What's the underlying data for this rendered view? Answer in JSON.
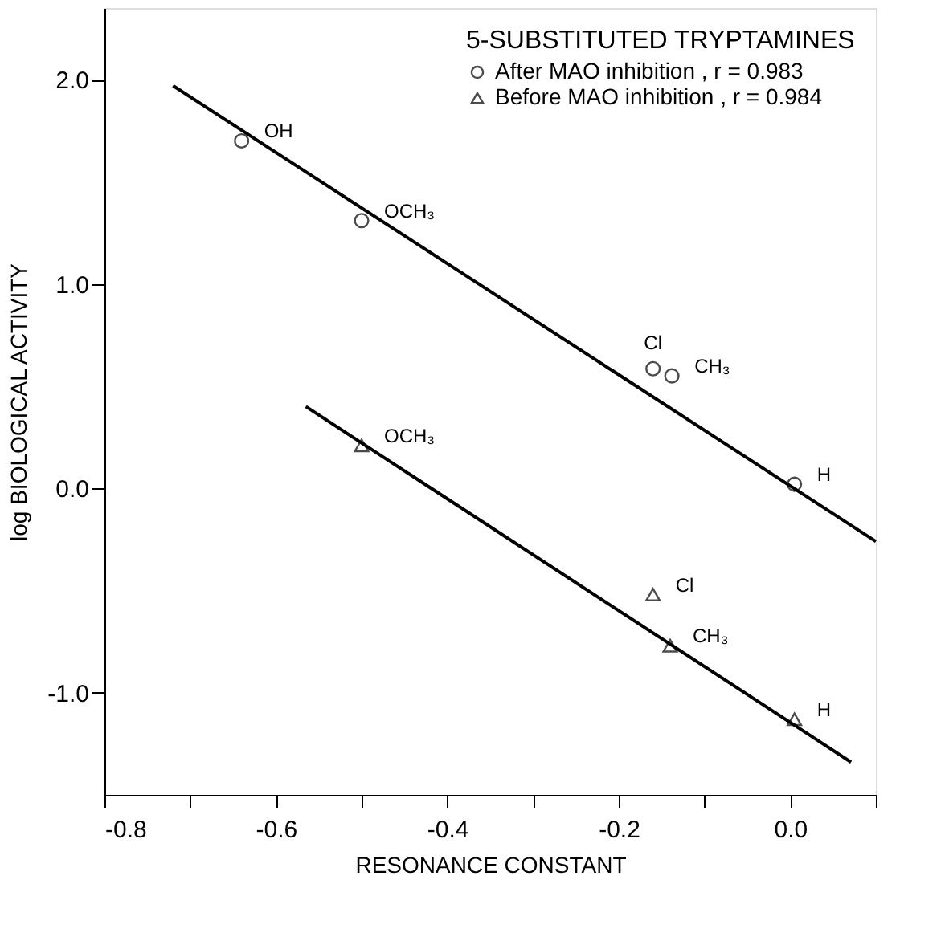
{
  "chart_data": {
    "type": "scatter",
    "xlabel": "RESONANCE CONSTANT",
    "ylabel": "log  BIOLOGICAL ACTIVITY",
    "legend_title": "5-SUBSTITUTED TRYPTAMINES",
    "legend": "top right",
    "grid": false,
    "xlim": [
      -0.8,
      0.1
    ],
    "ylim": [
      -1.5,
      2.35
    ],
    "xticks": [
      -0.8,
      {
        "value": -0.7,
        "label": null
      },
      -0.6,
      {
        "value": -0.5,
        "label": null
      },
      -0.4,
      {
        "value": -0.3,
        "label": null
      },
      -0.2,
      {
        "value": -0.1,
        "label": null
      },
      {
        "value": 0.0,
        "label": "0.0"
      },
      {
        "value": 0.1,
        "label": null
      }
    ],
    "yticks": [
      {
        "value": -1.0,
        "label": "-1.0"
      },
      {
        "value": 0.0,
        "label": "0.0"
      },
      {
        "value": 1.0,
        "label": "1.0"
      },
      {
        "value": 2.0,
        "label": "2.0"
      }
    ],
    "series": [
      {
        "name": "After MAO inhibition , r = 0.983",
        "marker": "circle",
        "color": "#000000",
        "x": [
          -0.64,
          -0.5,
          -0.16,
          -0.138,
          0.005
        ],
        "values": [
          1.7,
          1.31,
          0.585,
          0.55,
          0.02
        ]
      },
      {
        "name": "Before MAO inhibition , r = 0.984",
        "marker": "triangle",
        "color": "#000000",
        "x": [
          -0.5,
          -0.16,
          -0.14,
          0.005
        ],
        "values": [
          0.21,
          -0.52,
          -0.77,
          -1.13
        ]
      },
      {
        "type": "line",
        "color": "#000000",
        "line_style": "solid",
        "x": [
          -0.72,
          0.1
        ],
        "values": [
          1.97,
          -0.26
        ]
      },
      {
        "type": "line",
        "color": "#000000",
        "line_style": "solid",
        "x": [
          -0.565,
          0.071
        ],
        "values": [
          0.4,
          -1.34
        ]
      }
    ],
    "annotations": [
      {
        "text": "OH",
        "x": -0.64,
        "y": 1.7
      },
      {
        "text": "OCH₃",
        "x": -0.5,
        "y": 1.31
      },
      {
        "text": "Cl",
        "x": -0.16,
        "y": 0.585
      },
      {
        "text": "CH₃",
        "x": -0.138,
        "y": 0.55
      },
      {
        "text": "H",
        "x": 0.005,
        "y": 0.02
      },
      {
        "text": "OCH₃",
        "x": -0.5,
        "y": 0.21
      },
      {
        "text": "Cl",
        "x": -0.16,
        "y": -0.52
      },
      {
        "text": "CH₃",
        "x": -0.14,
        "y": -0.77
      },
      {
        "text": "H",
        "x": 0.005,
        "y": -1.13
      }
    ]
  }
}
